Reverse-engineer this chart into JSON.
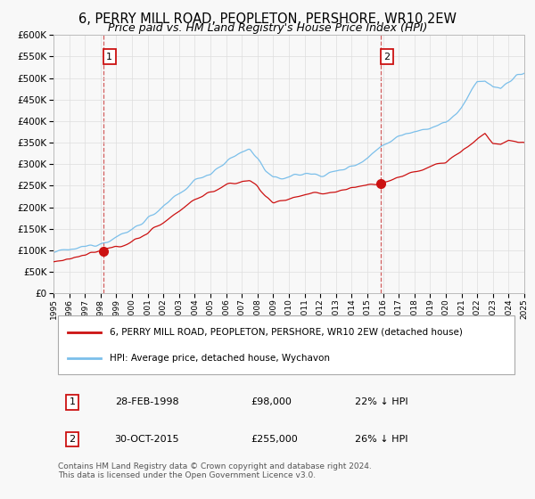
{
  "title": "6, PERRY MILL ROAD, PEOPLETON, PERSHORE, WR10 2EW",
  "subtitle": "Price paid vs. HM Land Registry's House Price Index (HPI)",
  "title_fontsize": 10.5,
  "subtitle_fontsize": 9,
  "hpi_color": "#7bbfea",
  "price_color": "#cc1111",
  "marker_color": "#cc1111",
  "ylim": [
    0,
    600000
  ],
  "yticks": [
    0,
    50000,
    100000,
    150000,
    200000,
    250000,
    300000,
    350000,
    400000,
    450000,
    500000,
    550000,
    600000
  ],
  "sale1_x": 1998.17,
  "sale1_y": 98000,
  "sale1_label": "1",
  "sale2_x": 2015.83,
  "sale2_y": 255000,
  "sale2_label": "2",
  "legend_label_red": "6, PERRY MILL ROAD, PEOPLETON, PERSHORE, WR10 2EW (detached house)",
  "legend_label_blue": "HPI: Average price, detached house, Wychavon",
  "table_row1": [
    "1",
    "28-FEB-1998",
    "£98,000",
    "22% ↓ HPI"
  ],
  "table_row2": [
    "2",
    "30-OCT-2015",
    "£255,000",
    "26% ↓ HPI"
  ],
  "footer": "Contains HM Land Registry data © Crown copyright and database right 2024.\nThis data is licensed under the Open Government Licence v3.0.",
  "xmin": 1995,
  "xmax": 2025,
  "grid_color": "#dddddd",
  "background_color": "#f8f8f8",
  "plot_bg": "#f8f8f8"
}
